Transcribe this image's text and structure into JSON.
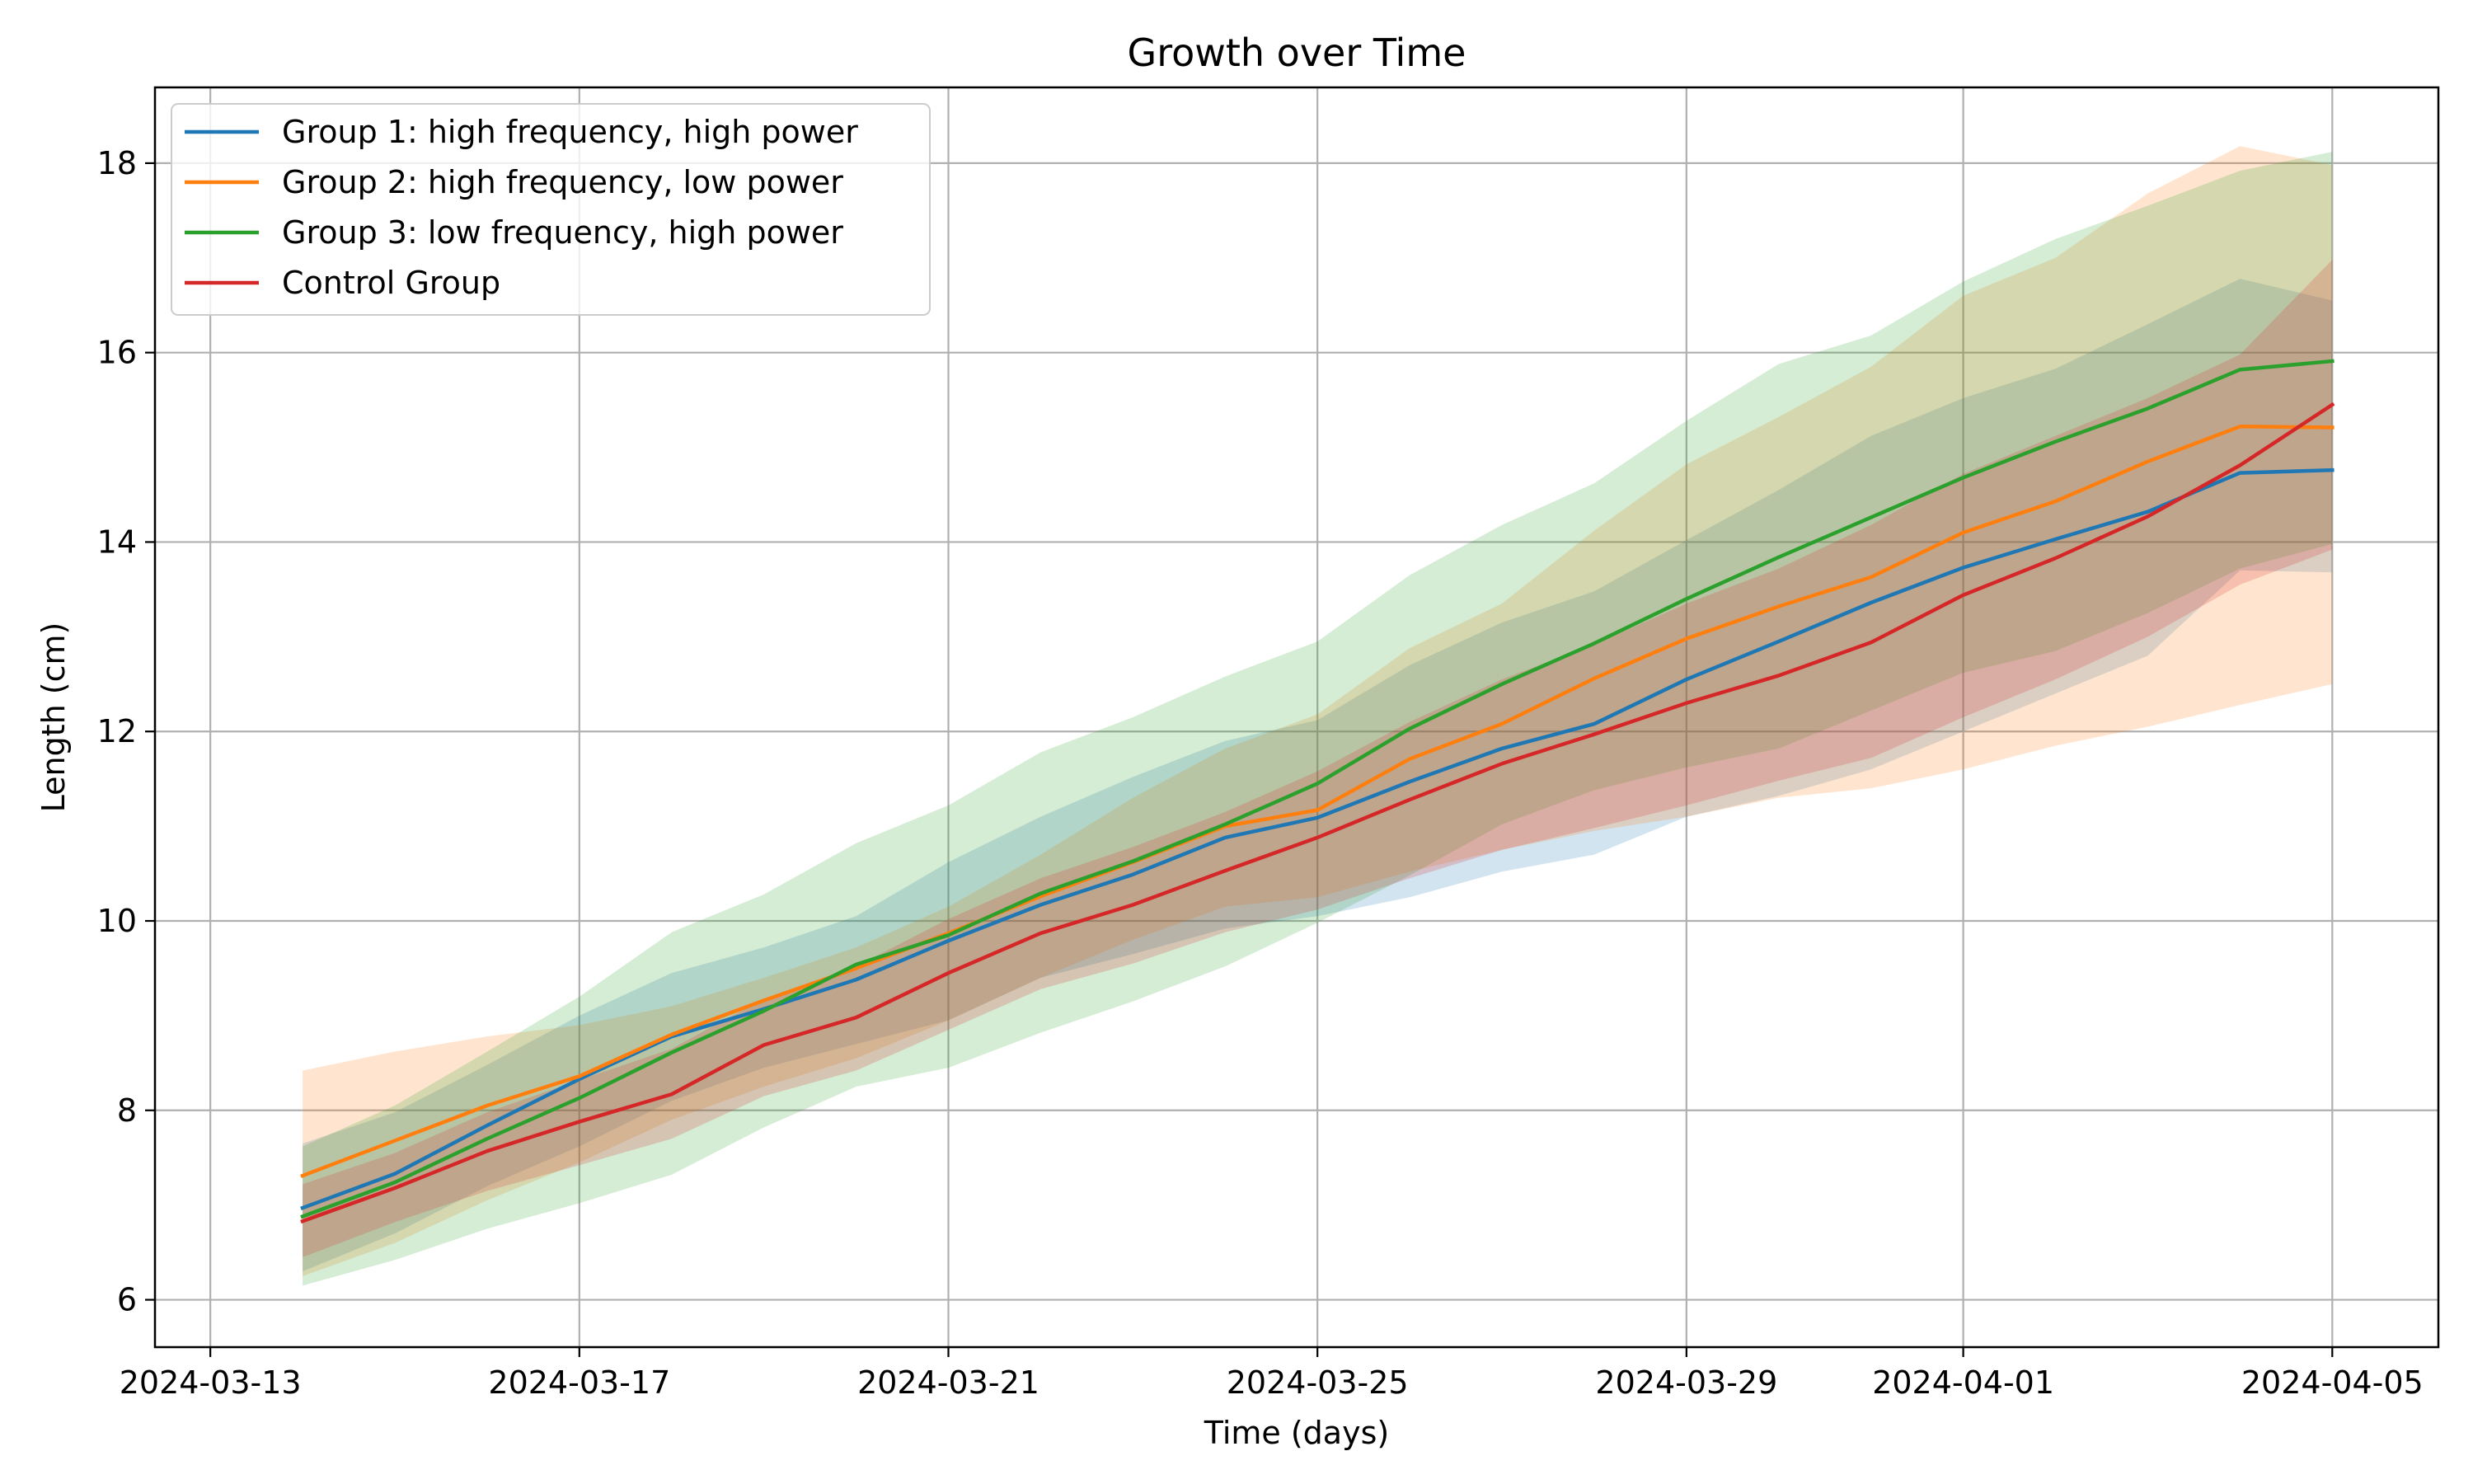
{
  "chart_data": {
    "type": "line",
    "title": "Growth over Time",
    "xlabel": "Time (days)",
    "ylabel": "Length (cm)",
    "x_axis": "date",
    "xlim": [
      "2024-03-13",
      "2024-04-05"
    ],
    "ylim": [
      5.5,
      18.8
    ],
    "grid": true,
    "legend_position": "upper-left",
    "x_ticks": [
      "2024-03-13",
      "2024-03-17",
      "2024-03-21",
      "2024-03-25",
      "2024-03-29",
      "2024-04-01",
      "2024-04-05"
    ],
    "y_ticks": [
      6,
      8,
      10,
      12,
      14,
      16,
      18
    ],
    "x": [
      "2024-03-14",
      "2024-03-15",
      "2024-03-16",
      "2024-03-17",
      "2024-03-18",
      "2024-03-19",
      "2024-03-20",
      "2024-03-21",
      "2024-03-22",
      "2024-03-23",
      "2024-03-24",
      "2024-03-25",
      "2024-03-26",
      "2024-03-27",
      "2024-03-28",
      "2024-03-29",
      "2024-03-30",
      "2024-03-31",
      "2024-04-01",
      "2024-04-02",
      "2024-04-03",
      "2024-04-04",
      "2024-04-05"
    ],
    "series": [
      {
        "name": "Group 1: high frequency, high power",
        "color": "#1f77b4",
        "values": [
          6.97,
          7.33,
          7.84,
          8.33,
          8.78,
          9.07,
          9.38,
          9.79,
          10.17,
          10.49,
          10.88,
          11.09,
          11.47,
          11.82,
          12.08,
          12.55,
          12.95,
          13.36,
          13.73,
          14.03,
          14.32,
          14.73,
          14.76
        ],
        "lower": [
          6.3,
          6.7,
          7.2,
          7.62,
          8.1,
          8.45,
          8.7,
          8.95,
          9.4,
          9.65,
          9.92,
          10.05,
          10.25,
          10.52,
          10.7,
          11.1,
          11.32,
          11.6,
          12.0,
          12.4,
          12.8,
          13.7,
          13.68
        ],
        "upper": [
          7.65,
          7.98,
          8.48,
          9.0,
          9.45,
          9.72,
          10.05,
          10.62,
          11.1,
          11.52,
          11.9,
          12.12,
          12.7,
          13.15,
          13.48,
          14.02,
          14.55,
          15.12,
          15.52,
          15.83,
          16.3,
          16.78,
          16.55
        ]
      },
      {
        "name": "Group 2: high frequency, low power",
        "color": "#ff7f0e",
        "values": [
          7.31,
          7.68,
          8.05,
          8.36,
          8.8,
          9.16,
          9.5,
          9.87,
          10.26,
          10.62,
          11.0,
          11.17,
          11.71,
          12.08,
          12.56,
          12.98,
          13.32,
          13.63,
          14.1,
          14.43,
          14.85,
          15.22,
          15.21
        ],
        "lower": [
          6.25,
          6.6,
          7.05,
          7.45,
          7.9,
          8.25,
          8.55,
          8.95,
          9.4,
          9.8,
          10.15,
          10.25,
          10.52,
          10.75,
          10.95,
          11.1,
          11.3,
          11.4,
          11.6,
          11.85,
          12.05,
          12.28,
          12.5
        ],
        "upper": [
          8.42,
          8.62,
          8.78,
          8.9,
          9.1,
          9.4,
          9.72,
          10.15,
          10.7,
          11.3,
          11.82,
          12.18,
          12.88,
          13.35,
          14.12,
          14.82,
          15.32,
          15.85,
          16.6,
          17.0,
          17.68,
          18.18,
          17.98
        ]
      },
      {
        "name": "Group 3: low frequency, high power",
        "color": "#2ca02c",
        "values": [
          6.88,
          7.24,
          7.7,
          8.13,
          8.61,
          9.05,
          9.54,
          9.85,
          10.29,
          10.63,
          11.02,
          11.45,
          12.03,
          12.5,
          12.93,
          13.4,
          13.84,
          14.26,
          14.68,
          15.06,
          15.41,
          15.82,
          15.91
        ],
        "lower": [
          6.15,
          6.42,
          6.75,
          7.02,
          7.32,
          7.82,
          8.25,
          8.45,
          8.82,
          9.15,
          9.52,
          9.98,
          10.48,
          11.02,
          11.38,
          11.62,
          11.82,
          12.22,
          12.62,
          12.85,
          13.25,
          13.72,
          13.98
        ],
        "upper": [
          7.62,
          8.05,
          8.62,
          9.2,
          9.88,
          10.28,
          10.82,
          11.22,
          11.78,
          12.15,
          12.58,
          12.95,
          13.65,
          14.18,
          14.62,
          15.28,
          15.88,
          16.18,
          16.75,
          17.2,
          17.55,
          17.92,
          18.12
        ]
      },
      {
        "name": "Control Group",
        "color": "#d62728",
        "values": [
          6.83,
          7.18,
          7.57,
          7.88,
          8.17,
          8.69,
          8.98,
          9.45,
          9.87,
          10.17,
          10.53,
          10.88,
          11.28,
          11.66,
          11.97,
          12.3,
          12.59,
          12.94,
          13.44,
          13.83,
          14.27,
          14.81,
          15.45
        ],
        "lower": [
          6.45,
          6.82,
          7.15,
          7.42,
          7.7,
          8.15,
          8.42,
          8.85,
          9.28,
          9.55,
          9.88,
          10.12,
          10.45,
          10.75,
          10.98,
          11.22,
          11.48,
          11.72,
          12.15,
          12.55,
          13.0,
          13.55,
          13.92
        ],
        "upper": [
          7.22,
          7.55,
          7.98,
          8.32,
          8.65,
          9.18,
          9.52,
          10.02,
          10.45,
          10.78,
          11.15,
          11.58,
          12.1,
          12.55,
          12.92,
          13.35,
          13.72,
          14.18,
          14.72,
          15.12,
          15.52,
          15.98,
          16.98
        ]
      }
    ]
  }
}
